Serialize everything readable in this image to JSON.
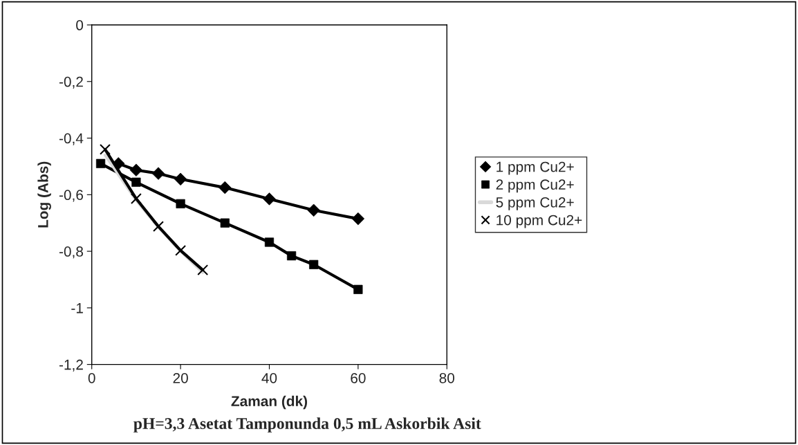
{
  "chart_data": {
    "type": "line",
    "xlabel": "Zaman (dk)",
    "ylabel": "Log (Abs)",
    "annotations": [
      "pH=3,3 Asetat Tamponunda 0,5 mL Askorbik Asit"
    ],
    "xlim": [
      0,
      80
    ],
    "xticks": [
      0,
      20,
      40,
      60,
      80
    ],
    "ylim": [
      -1.2,
      0
    ],
    "yticks": [
      {
        "value": -1.2,
        "label": "-1,2"
      },
      {
        "value": -1,
        "label": "-1"
      },
      {
        "value": -0.8,
        "label": "-0,8"
      },
      {
        "value": -0.6,
        "label": "-0,6"
      },
      {
        "value": -0.4,
        "label": "-0,4"
      },
      {
        "value": -0.2,
        "label": "-0,2"
      },
      0
    ],
    "grid": false,
    "legend": "right",
    "line_style": "solid",
    "series": [
      {
        "name": "1 ppm Cu2+",
        "color": "#000000",
        "marker": "diamond",
        "x": [
          6,
          10,
          15,
          20,
          30,
          40,
          50,
          60
        ],
        "values": [
          -0.49,
          -0.513,
          -0.525,
          -0.545,
          -0.575,
          -0.615,
          -0.655,
          -0.685
        ]
      },
      {
        "name": "2 ppm Cu2+",
        "color": "#000000",
        "marker": "square",
        "x": [
          2,
          10,
          20,
          30,
          40,
          45,
          50,
          60
        ],
        "values": [
          -0.49,
          -0.556,
          -0.632,
          -0.7,
          -0.768,
          -0.816,
          -0.847,
          -0.935
        ]
      },
      {
        "name": "5 ppm Cu2+",
        "color": "#d9d9d9",
        "marker": "none",
        "x": [
          3,
          10,
          15,
          20,
          25
        ],
        "values": [
          -0.46,
          -0.62,
          -0.715,
          -0.8,
          -0.875
        ]
      },
      {
        "name": "10 ppm Cu2+",
        "color": "#000000",
        "marker": "cross",
        "x": [
          3,
          10,
          15,
          20,
          25
        ],
        "values": [
          -0.44,
          -0.614,
          -0.712,
          -0.797,
          -0.866
        ]
      }
    ]
  }
}
